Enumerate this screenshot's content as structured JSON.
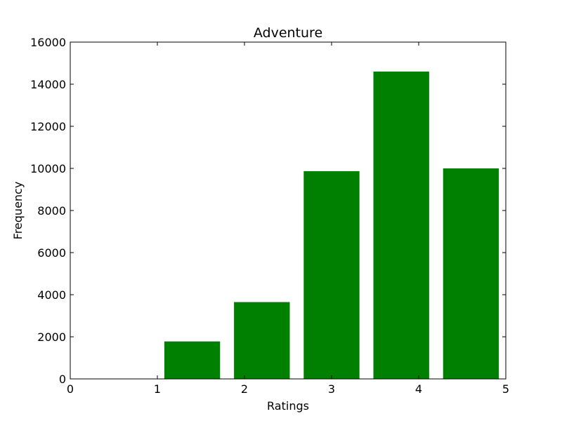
{
  "chart_data": {
    "type": "bar",
    "title": "Adventure",
    "xlabel": "Ratings",
    "ylabel": "Frequency",
    "xlim": [
      0,
      5
    ],
    "ylim": [
      0,
      16000
    ],
    "xticks": [
      "0",
      "1",
      "2",
      "3",
      "4",
      "5"
    ],
    "yticks": [
      "0",
      "2000",
      "4000",
      "6000",
      "8000",
      "10000",
      "12000",
      "14000",
      "16000"
    ],
    "bars": [
      {
        "x0": 1.08,
        "x1": 1.72,
        "value": 1780
      },
      {
        "x0": 1.88,
        "x1": 2.52,
        "value": 3650
      },
      {
        "x0": 2.68,
        "x1": 3.32,
        "value": 9870
      },
      {
        "x0": 3.48,
        "x1": 4.12,
        "value": 14600
      },
      {
        "x0": 4.28,
        "x1": 4.92,
        "value": 10000
      }
    ],
    "bar_color": "#008000",
    "grid": false,
    "legend": "none"
  }
}
